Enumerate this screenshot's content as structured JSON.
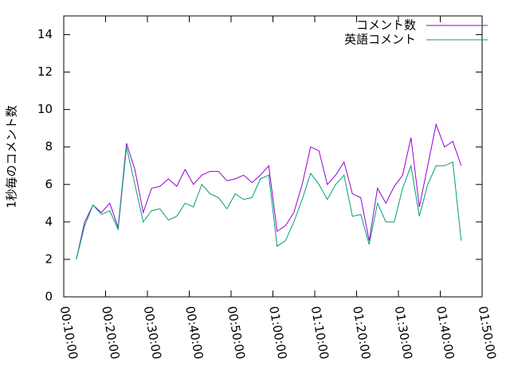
{
  "chart_data": {
    "type": "line",
    "ylabel": "1秒毎のコメント数",
    "x": [
      780,
      900,
      1020,
      1140,
      1260,
      1380,
      1500,
      1620,
      1740,
      1860,
      1980,
      2100,
      2220,
      2340,
      2460,
      2580,
      2700,
      2820,
      2940,
      3060,
      3180,
      3300,
      3420,
      3540,
      3660,
      3780,
      3900,
      4020,
      4140,
      4260,
      4380,
      4500,
      4620,
      4740,
      4860,
      4980,
      5100,
      5220,
      5340,
      5460,
      5580,
      5700,
      5820,
      5940,
      6060,
      6180,
      6300
    ],
    "series": [
      {
        "name": "コメント数",
        "color": "#9400d3",
        "values": [
          2.0,
          4.0,
          4.9,
          4.5,
          5.0,
          3.7,
          8.2,
          6.8,
          4.5,
          5.8,
          5.9,
          6.3,
          5.9,
          6.8,
          6.0,
          6.5,
          6.7,
          6.7,
          6.2,
          6.3,
          6.5,
          6.1,
          6.5,
          7.0,
          3.5,
          3.8,
          4.5,
          6.0,
          8.0,
          7.8,
          6.0,
          6.5,
          7.2,
          5.5,
          5.3,
          3.0,
          5.8,
          5.0,
          5.9,
          6.5,
          8.5,
          4.8,
          7.0,
          9.2,
          8.0,
          8.3,
          7.0
        ]
      },
      {
        "name": "英語コメント",
        "color": "#009e73",
        "values": [
          2.0,
          3.8,
          4.9,
          4.4,
          4.6,
          3.6,
          8.0,
          6.0,
          4.0,
          4.6,
          4.7,
          4.1,
          4.3,
          5.0,
          4.8,
          6.0,
          5.5,
          5.3,
          4.7,
          5.5,
          5.2,
          5.3,
          6.3,
          6.5,
          2.7,
          3.0,
          4.0,
          5.2,
          6.6,
          6.0,
          5.2,
          6.0,
          6.5,
          4.3,
          4.4,
          2.8,
          5.0,
          4.0,
          4.0,
          5.8,
          7.0,
          4.3,
          6.0,
          7.0,
          7.0,
          7.2,
          3.0
        ]
      }
    ],
    "xlim": [
      600,
      6600
    ],
    "xticks": [
      {
        "value": 600,
        "label": "00:10:00"
      },
      {
        "value": 1200,
        "label": "00:20:00"
      },
      {
        "value": 1800,
        "label": "00:30:00"
      },
      {
        "value": 2400,
        "label": "00:40:00"
      },
      {
        "value": 3000,
        "label": "00:50:00"
      },
      {
        "value": 3600,
        "label": "01:00:00"
      },
      {
        "value": 4200,
        "label": "01:10:00"
      },
      {
        "value": 4800,
        "label": "01:20:00"
      },
      {
        "value": 5400,
        "label": "01:30:00"
      },
      {
        "value": 6000,
        "label": "01:40:00"
      },
      {
        "value": 6600,
        "label": "01:50:00"
      }
    ],
    "ylim": [
      0,
      15
    ],
    "yticks": [
      0,
      2,
      4,
      6,
      8,
      10,
      12,
      14
    ],
    "legend": "top-right"
  }
}
